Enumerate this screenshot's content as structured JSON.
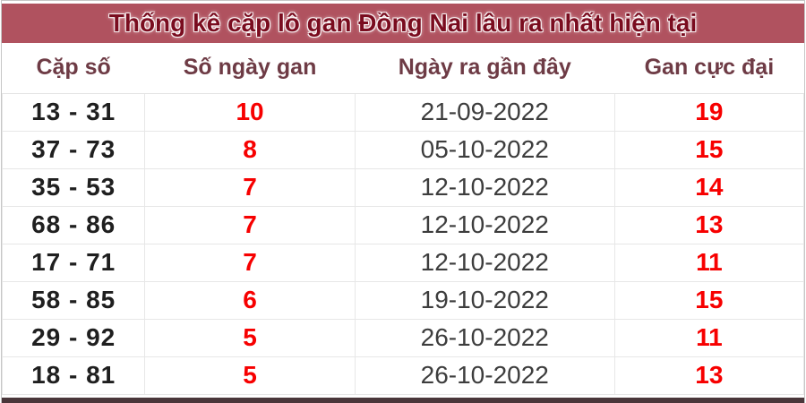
{
  "title": "Thống kê cặp lô gan Đồng Nai lâu ra nhất hiện tại",
  "colors": {
    "title_bar_bg": "#b0525f",
    "title_text": "#7a0c1f",
    "header_text": "#6e3b45",
    "pair_text": "#1f1f1f",
    "gan_red": "#f70000",
    "date_text": "#3d3d3d",
    "cell_border": "#e7e7e7",
    "bottom_strip": "#4a363a"
  },
  "table": {
    "columns": {
      "pair": "Cặp số",
      "days": "Số ngày gan",
      "date": "Ngày ra gần đây",
      "max": "Gan cực đại"
    },
    "rows": [
      {
        "pair": "13 - 31",
        "days": "10",
        "date": "21-09-2022",
        "max": "19"
      },
      {
        "pair": "37 - 73",
        "days": "8",
        "date": "05-10-2022",
        "max": "15"
      },
      {
        "pair": "35 - 53",
        "days": "7",
        "date": "12-10-2022",
        "max": "14"
      },
      {
        "pair": "68 - 86",
        "days": "7",
        "date": "12-10-2022",
        "max": "13"
      },
      {
        "pair": "17 - 71",
        "days": "7",
        "date": "12-10-2022",
        "max": "11"
      },
      {
        "pair": "58 - 85",
        "days": "6",
        "date": "19-10-2022",
        "max": "15"
      },
      {
        "pair": "29 - 92",
        "days": "5",
        "date": "26-10-2022",
        "max": "11"
      },
      {
        "pair": "18 - 81",
        "days": "5",
        "date": "26-10-2022",
        "max": "13"
      }
    ]
  },
  "chart_data": {
    "type": "table",
    "title": "Thống kê cặp lô gan Đồng Nai lâu ra nhất hiện tại",
    "columns": [
      "Cặp số",
      "Số ngày gan",
      "Ngày ra gần đây",
      "Gan cực đại"
    ],
    "rows": [
      [
        "13 - 31",
        10,
        "21-09-2022",
        19
      ],
      [
        "37 - 73",
        8,
        "05-10-2022",
        15
      ],
      [
        "35 - 53",
        7,
        "12-10-2022",
        14
      ],
      [
        "68 - 86",
        7,
        "12-10-2022",
        13
      ],
      [
        "17 - 71",
        7,
        "12-10-2022",
        11
      ],
      [
        "58 - 85",
        6,
        "19-10-2022",
        15
      ],
      [
        "29 - 92",
        5,
        "26-10-2022",
        11
      ],
      [
        "18 - 81",
        5,
        "26-10-2022",
        13
      ]
    ]
  }
}
